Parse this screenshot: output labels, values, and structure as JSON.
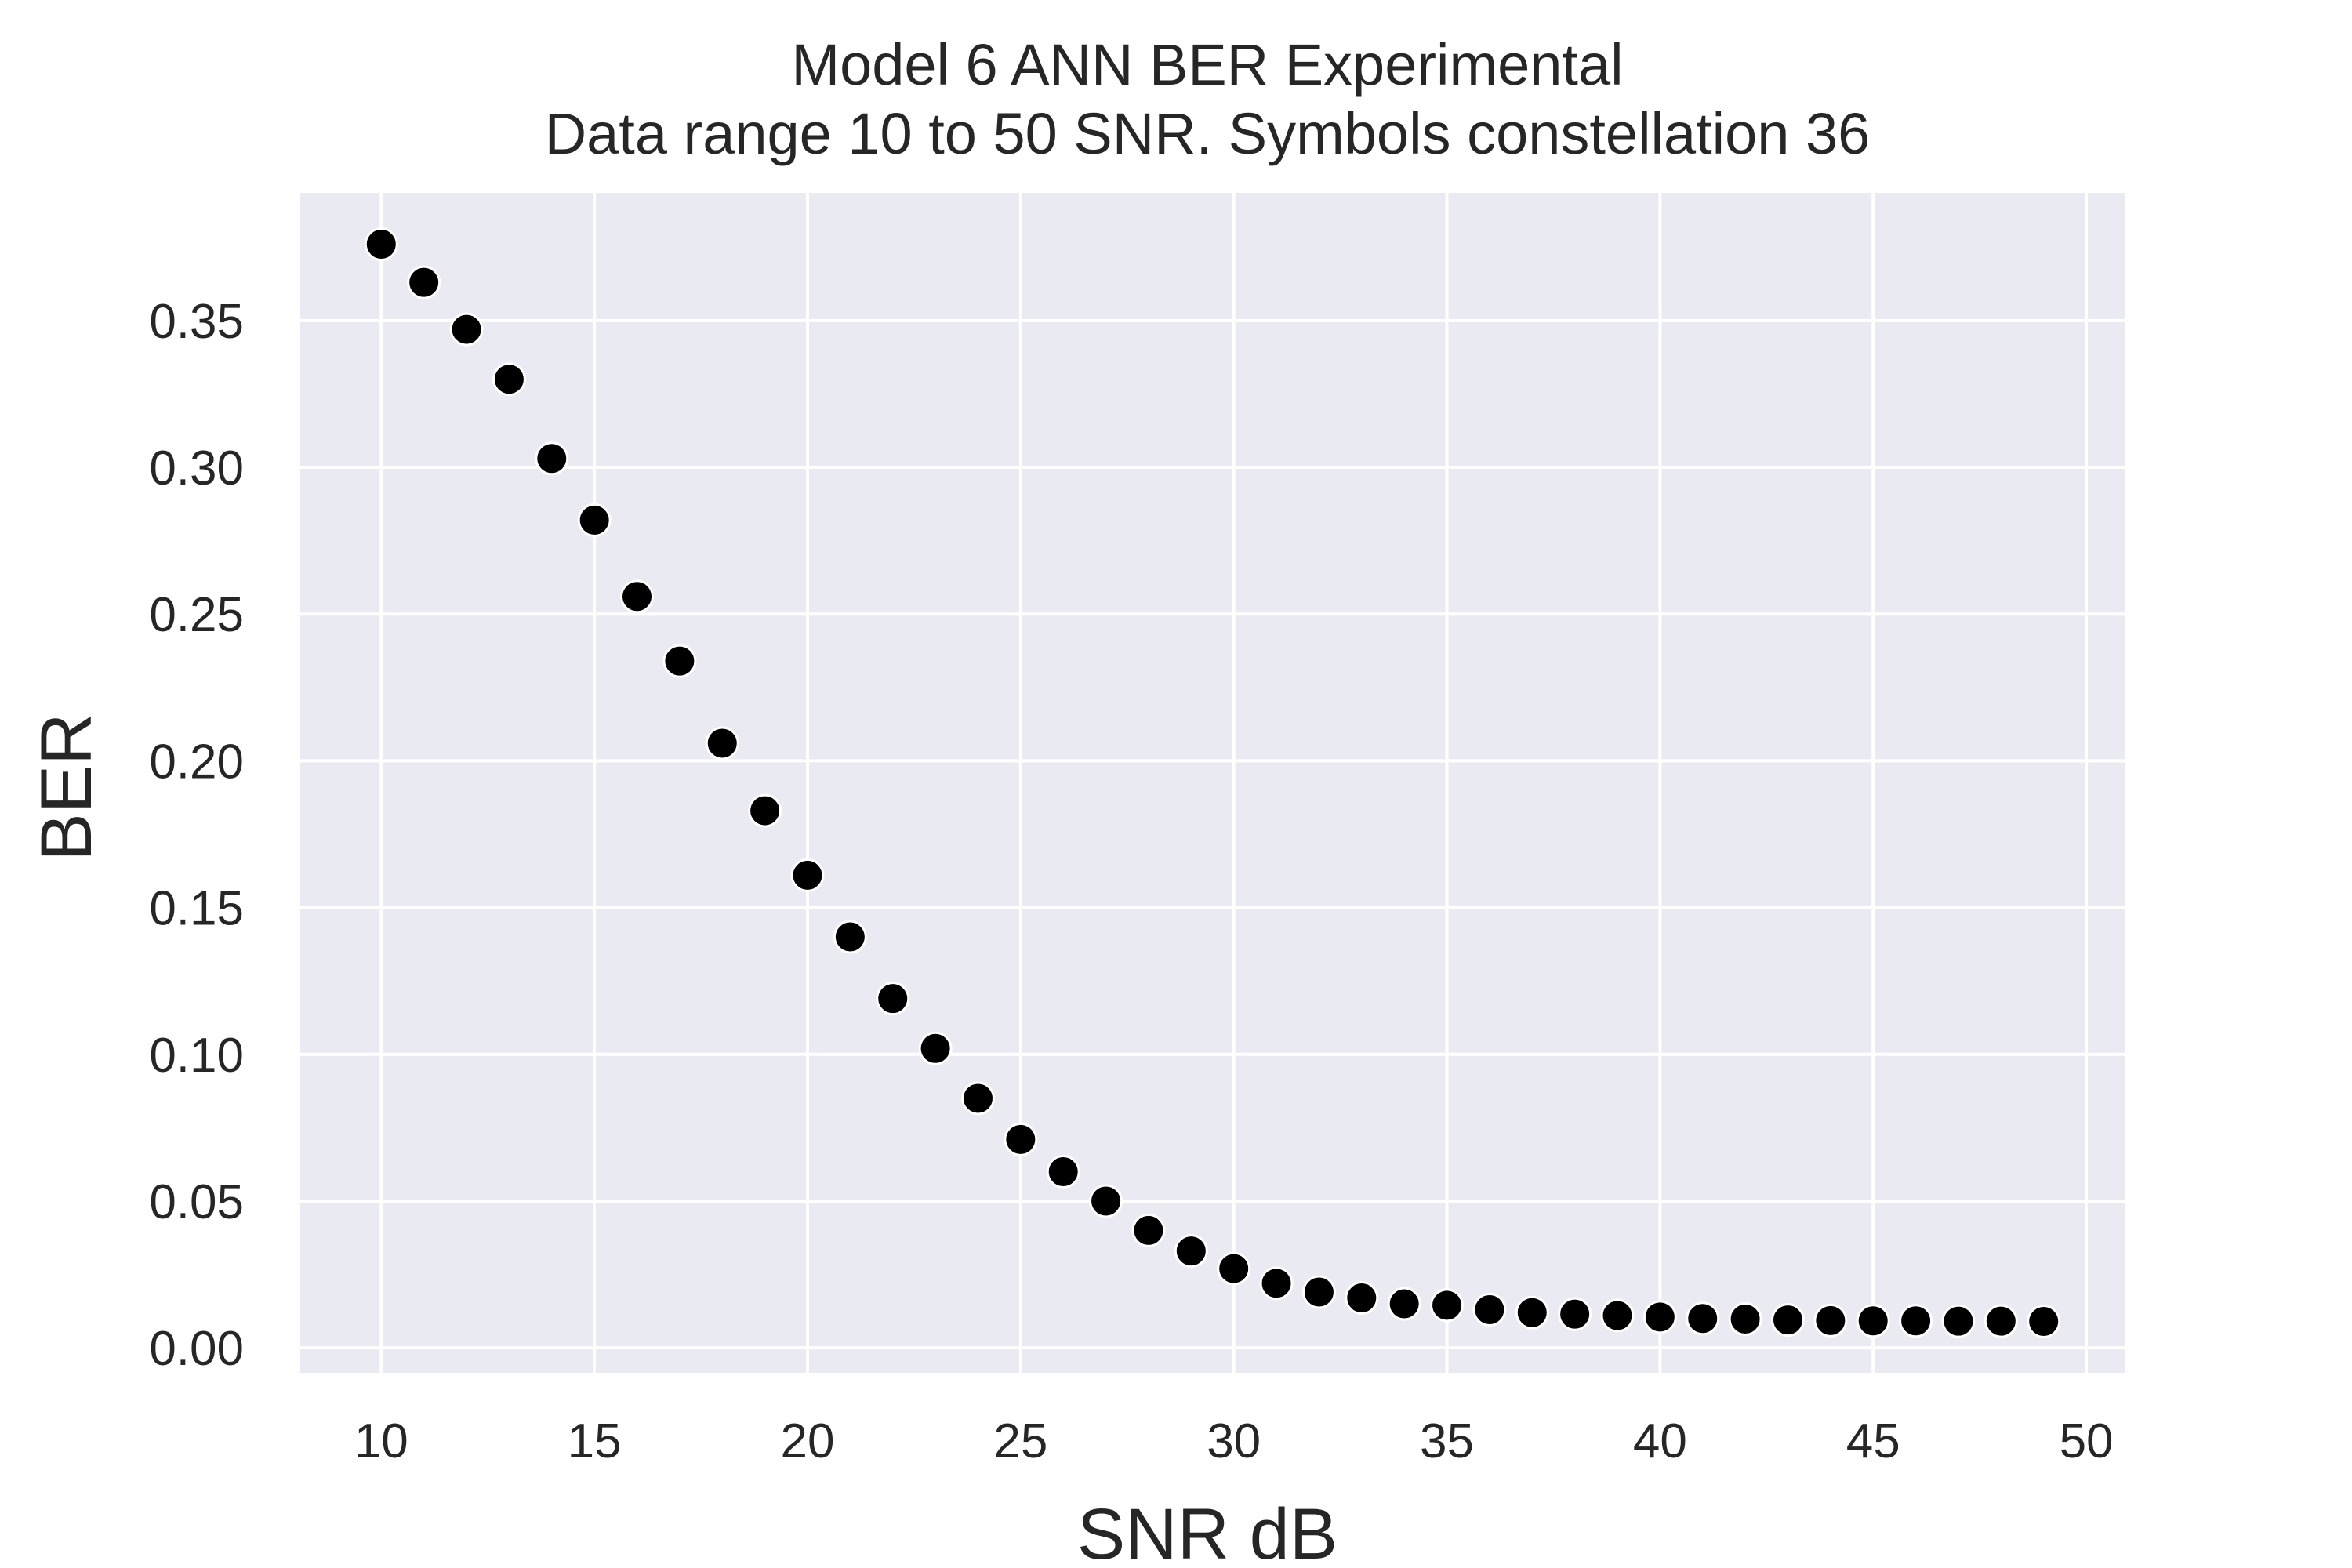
{
  "chart_data": {
    "type": "scatter",
    "title": "Model 6 ANN BER Experimental",
    "subtitle": "Data range 10 to 50 SNR. Symbols constellation 36",
    "xlabel": "SNR dB",
    "ylabel": "BER",
    "xlim": [
      8.1,
      50.9
    ],
    "ylim": [
      -0.0085,
      0.3935
    ],
    "xticks": [
      10,
      15,
      20,
      25,
      30,
      35,
      40,
      45,
      50
    ],
    "xtick_labels": [
      "10",
      "15",
      "20",
      "25",
      "30",
      "35",
      "40",
      "45",
      "50"
    ],
    "yticks": [
      0.0,
      0.05,
      0.1,
      0.15,
      0.2,
      0.25,
      0.3,
      0.35
    ],
    "ytick_labels": [
      "0.00",
      "0.05",
      "0.10",
      "0.15",
      "0.20",
      "0.25",
      "0.30",
      "0.35"
    ],
    "grid": true,
    "background_color": "#eaeaf2",
    "grid_color": "#ffffff",
    "marker_color": "#000000",
    "marker_edge_color": "#ffffff",
    "series": [
      {
        "x": [
          10,
          11,
          12,
          13,
          14,
          15,
          16,
          17,
          18,
          19,
          20,
          21,
          22,
          23,
          24,
          25,
          26,
          27,
          28,
          29,
          30,
          31,
          32,
          33,
          34,
          35,
          36,
          37,
          38,
          39,
          40,
          41,
          42,
          43,
          44,
          45,
          46,
          47,
          48,
          49
        ],
        "y": [
          0.376,
          0.363,
          0.347,
          0.33,
          0.303,
          0.282,
          0.256,
          0.234,
          0.206,
          0.183,
          0.161,
          0.14,
          0.119,
          0.102,
          0.085,
          0.071,
          0.06,
          0.05,
          0.04,
          0.033,
          0.027,
          0.022,
          0.019,
          0.017,
          0.015,
          0.0145,
          0.013,
          0.012,
          0.0115,
          0.011,
          0.0105,
          0.01,
          0.0098,
          0.0095,
          0.0093,
          0.0092,
          0.0092,
          0.0091,
          0.0091,
          0.009
        ]
      }
    ]
  }
}
